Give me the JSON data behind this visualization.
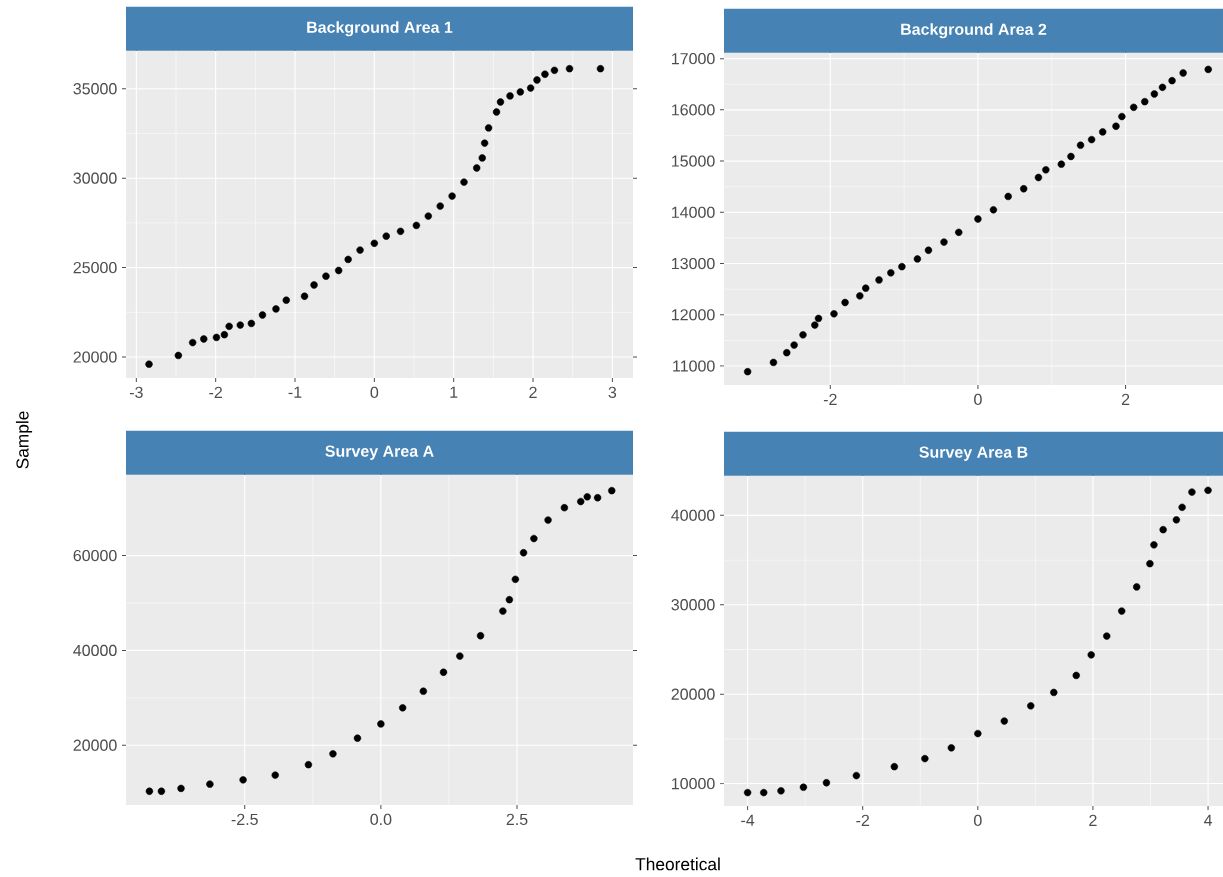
{
  "chart_data": [
    {
      "type": "scatter",
      "title": "Background Area 1",
      "ylabel": "Sample",
      "color": "#000000",
      "marker": "circle",
      "grid": true,
      "x": [
        -2.84,
        -2.47,
        -2.29,
        -2.15,
        -1.99,
        -1.89,
        -1.83,
        -1.69,
        -1.55,
        -1.41,
        -1.24,
        -1.11,
        -0.88,
        -0.76,
        -0.61,
        -0.45,
        -0.33,
        -0.18,
        0,
        0.15,
        0.33,
        0.53,
        0.68,
        0.83,
        0.98,
        1.13,
        1.29,
        1.36,
        1.39,
        1.44,
        1.54,
        1.59,
        1.71,
        1.84,
        1.97,
        2.05,
        2.15,
        2.27,
        2.46,
        2.85
      ],
      "values": [
        19600,
        20090,
        20810,
        21010,
        21100,
        21250,
        21720,
        21790,
        21880,
        22350,
        22690,
        23180,
        23400,
        24030,
        24520,
        24840,
        25460,
        25980,
        26360,
        26760,
        27030,
        27360,
        27880,
        28440,
        29000,
        29780,
        30570,
        31130,
        31960,
        32810,
        33700,
        34260,
        34600,
        34820,
        35040,
        35490,
        35810,
        36030,
        36120,
        36120
      ],
      "xlim": [
        -3.13,
        3.26
      ],
      "ylim": [
        18830,
        37110
      ],
      "xticks": [
        -3,
        -2,
        -1,
        0,
        1,
        2,
        3
      ],
      "yticks": [
        20000,
        25000,
        30000,
        35000
      ]
    },
    {
      "type": "scatter",
      "title": "Background Area 2",
      "color": "#000000",
      "marker": "circle",
      "grid": true,
      "x": [
        -3.12,
        -2.77,
        -2.59,
        -2.49,
        -2.37,
        -2.21,
        -2.16,
        -1.95,
        -1.8,
        -1.6,
        -1.52,
        -1.34,
        -1.18,
        -1.03,
        -0.82,
        -0.67,
        -0.46,
        -0.26,
        0,
        0.21,
        0.41,
        0.62,
        0.82,
        0.92,
        1.13,
        1.26,
        1.39,
        1.54,
        1.69,
        1.87,
        1.95,
        2.11,
        2.26,
        2.39,
        2.5,
        2.63,
        2.78,
        3.12
      ],
      "values": [
        10890,
        11070,
        11260,
        11410,
        11610,
        11800,
        11930,
        12020,
        12240,
        12370,
        12520,
        12680,
        12820,
        12940,
        13090,
        13260,
        13420,
        13610,
        13870,
        14050,
        14310,
        14460,
        14680,
        14830,
        14940,
        15090,
        15310,
        15420,
        15570,
        15680,
        15870,
        16050,
        16160,
        16310,
        16440,
        16570,
        16720,
        16790
      ],
      "xlim": [
        -3.44,
        3.32
      ],
      "ylim": [
        10630,
        17110
      ],
      "xticks": [
        -2,
        0,
        2
      ],
      "yticks": [
        11000,
        12000,
        13000,
        14000,
        15000,
        16000,
        17000
      ]
    },
    {
      "type": "scatter",
      "title": "Survey Area A",
      "xlabel": "Theoretical",
      "color": "#000000",
      "marker": "circle",
      "grid": true,
      "x": [
        -4.25,
        -4.03,
        -3.67,
        -3.14,
        -2.53,
        -1.94,
        -1.33,
        -0.88,
        -0.43,
        0,
        0.4,
        0.78,
        1.15,
        1.45,
        1.83,
        2.24,
        2.36,
        2.47,
        2.62,
        2.81,
        3.07,
        3.37,
        3.67,
        3.79,
        3.98,
        4.24
      ],
      "values": [
        10300,
        10300,
        10900,
        11800,
        12700,
        13700,
        15900,
        18200,
        21500,
        24500,
        27900,
        31400,
        35400,
        38800,
        43100,
        48300,
        50700,
        55000,
        60600,
        63600,
        67500,
        70100,
        71400,
        72400,
        72200,
        73700
      ],
      "xlim": [
        -4.68,
        4.63
      ],
      "ylim": [
        7400,
        77000
      ],
      "xticks": [
        -2.5,
        {
          "value": 0,
          "label": "0.0"
        },
        2.5
      ],
      "yticks": [
        20000,
        40000,
        60000
      ]
    },
    {
      "type": "scatter",
      "title": "Survey Area B",
      "color": "#000000",
      "marker": "circle",
      "grid": true,
      "x": [
        -4,
        -3.72,
        -3.42,
        -3.03,
        -2.63,
        -2.11,
        -1.45,
        -0.92,
        -0.46,
        0,
        0.46,
        0.92,
        1.32,
        1.71,
        1.97,
        2.24,
        2.5,
        2.76,
        2.99,
        3.06,
        3.22,
        3.45,
        3.55,
        3.72,
        4
      ],
      "values": [
        9000,
        9000,
        9200,
        9600,
        10100,
        10900,
        11900,
        12800,
        14000,
        15600,
        17000,
        18700,
        20200,
        22100,
        24400,
        26500,
        29300,
        32000,
        34600,
        36700,
        38400,
        39500,
        40900,
        42600,
        42800
      ],
      "xlim": [
        -4.41,
        4.26
      ],
      "ylim": [
        7500,
        44400
      ],
      "xticks": [
        -4,
        -2,
        0,
        2,
        4
      ],
      "yticks": [
        10000,
        20000,
        30000,
        40000
      ]
    }
  ]
}
